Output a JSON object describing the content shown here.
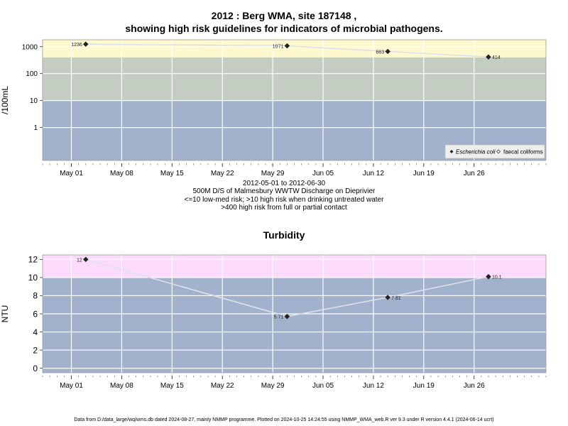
{
  "chart_data": [
    {
      "type": "line",
      "title_line1": "2012 : Berg WMA, site 187148 ,",
      "title_line2": "showing high risk guidelines for indicators of microbial pathogens.",
      "ylabel": "/100mL",
      "xlabel": "",
      "yscale": "log",
      "ylim": [
        0.06,
        1800
      ],
      "xlim": [
        "2012-04-27",
        "2012-07-06"
      ],
      "y_ticks": [
        1,
        10,
        100,
        1000
      ],
      "y_tick_labels": [
        "1",
        "10",
        "100",
        "1000"
      ],
      "x_ticks": [
        "2012-05-01",
        "2012-05-08",
        "2012-05-15",
        "2012-05-22",
        "2012-05-29",
        "2012-06-05",
        "2012-06-12",
        "2012-06-19",
        "2012-06-26"
      ],
      "x_tick_labels": [
        "May 01",
        "May 08",
        "May 15",
        "May 22",
        "May 29",
        "Jun 05",
        "Jun 12",
        "Jun 19",
        "Jun 26"
      ],
      "bands": [
        {
          "from": 0.06,
          "to": 10,
          "color": "#a2b2cc"
        },
        {
          "from": 10,
          "to": 400,
          "color": "#c3cdc2"
        },
        {
          "from": 400,
          "to": 1800,
          "color": "#fdf8cd"
        }
      ],
      "grid": true,
      "legend_position": "bottom-right",
      "series": [
        {
          "name": "Escherichia coli",
          "marker": "filled-diamond",
          "points": [
            {
              "x": "2012-05-03",
              "y": 1236,
              "label": "1236"
            },
            {
              "x": "2012-05-31",
              "y": 1071,
              "label": "1071"
            },
            {
              "x": "2012-06-14",
              "y": 663,
              "label": "663"
            },
            {
              "x": "2012-06-28",
              "y": 414,
              "label": "414"
            }
          ]
        },
        {
          "name": "faecal coliforms",
          "marker": "open-diamond",
          "points": []
        }
      ],
      "caption": [
        "2012-05-01 to 2012-06-30",
        "500M D/S of Malmesbury WWTW Discharge on Dieprivier",
        "<=10 low-med risk; >10 high risk when drinking untreated water",
        ">400 high risk from full or partial contact"
      ]
    },
    {
      "type": "line",
      "title": "Turbidity",
      "ylabel": "NTU",
      "xlabel": "",
      "ylim": [
        -0.5,
        12.5
      ],
      "xlim": [
        "2012-04-27",
        "2012-07-06"
      ],
      "y_ticks": [
        0,
        2,
        4,
        6,
        8,
        10,
        12
      ],
      "y_tick_labels": [
        "0",
        "2",
        "4",
        "6",
        "8",
        "10",
        "12"
      ],
      "x_ticks": [
        "2012-05-01",
        "2012-05-08",
        "2012-05-15",
        "2012-05-22",
        "2012-05-29",
        "2012-06-05",
        "2012-06-12",
        "2012-06-19",
        "2012-06-26"
      ],
      "x_tick_labels": [
        "May 01",
        "May 08",
        "May 15",
        "May 22",
        "May 29",
        "Jun 05",
        "Jun 12",
        "Jun 19",
        "Jun 26"
      ],
      "bands": [
        {
          "from": -0.5,
          "to": 10,
          "color": "#a2b2cc"
        },
        {
          "from": 10,
          "to": 12.5,
          "color": "#fcdafc"
        }
      ],
      "grid": true,
      "series": [
        {
          "name": "",
          "marker": "filled-diamond",
          "points": [
            {
              "x": "2012-05-03",
              "y": 12,
              "label": "12"
            },
            {
              "x": "2012-05-31",
              "y": 5.71,
              "label": "5.71"
            },
            {
              "x": "2012-06-14",
              "y": 7.81,
              "label": "7.81"
            },
            {
              "x": "2012-06-28",
              "y": 10.1,
              "label": "10.1"
            }
          ]
        }
      ]
    }
  ],
  "footer": "Data from D:/data_large/wq/wms.db dated 2024-08-27, mainly NMMP programme. Plotted on 2024-10-25 14:24:55 using NMMP_WMA_web.R ver 9.3 under R version 4.4.1 (2024-06-14 ucrt)"
}
